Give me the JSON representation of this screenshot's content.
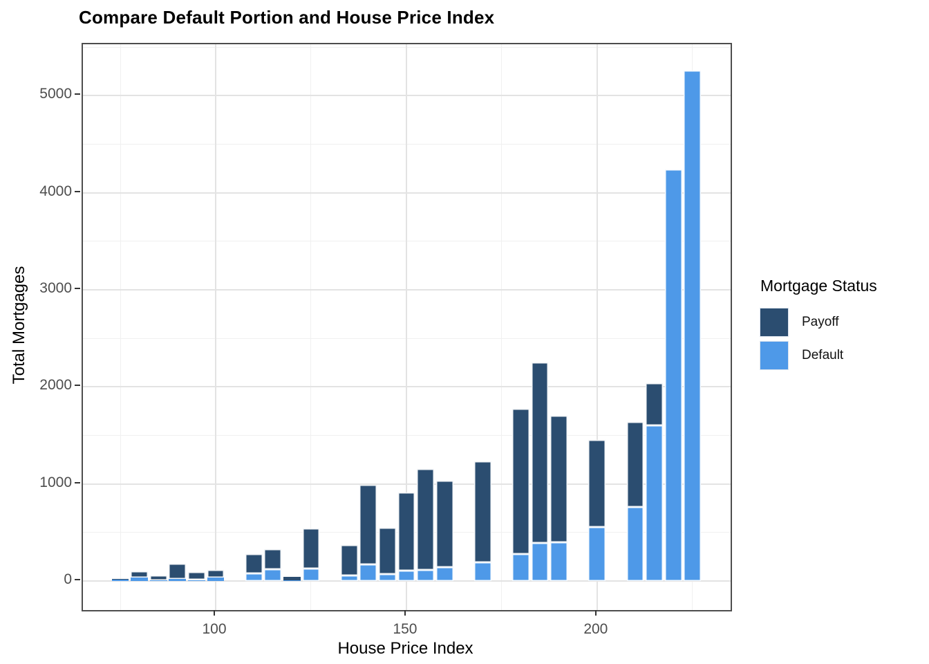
{
  "chart_data": {
    "type": "bar",
    "stacked": true,
    "title": "Compare Default Portion and House Price Index",
    "xlabel": "House Price Index",
    "ylabel": "Total Mortgages",
    "legend_title": "Mortgage Status",
    "legend_position": "right",
    "grid": true,
    "x_range": [
      65.2,
      235
    ],
    "y_range": [
      -300,
      5530
    ],
    "x_ticks": [
      100,
      150,
      200
    ],
    "x_minor_ticks": [
      75,
      125,
      175,
      225
    ],
    "y_ticks": [
      0,
      1000,
      2000,
      3000,
      4000,
      5000
    ],
    "y_minor_ticks": [
      500,
      1500,
      2500,
      3500,
      4500,
      5500
    ],
    "bar_width_units": 4.5,
    "series": [
      {
        "name": "Payoff",
        "color": "#2B4D70"
      },
      {
        "name": "Default",
        "color": "#4E99E8"
      }
    ],
    "bars": [
      {
        "hpi": 75,
        "payoff": 5,
        "default": 15
      },
      {
        "hpi": 80,
        "payoff": 65,
        "default": 35
      },
      {
        "hpi": 85,
        "payoff": 48,
        "default": 5
      },
      {
        "hpi": 90,
        "payoff": 155,
        "default": 20
      },
      {
        "hpi": 95,
        "payoff": 80,
        "default": 10
      },
      {
        "hpi": 100,
        "payoff": 80,
        "default": 35
      },
      {
        "hpi": 110,
        "payoff": 205,
        "default": 75
      },
      {
        "hpi": 115,
        "payoff": 210,
        "default": 120
      },
      {
        "hpi": 120,
        "payoff": 35,
        "default": 8
      },
      {
        "hpi": 125,
        "payoff": 410,
        "default": 130
      },
      {
        "hpi": 135,
        "payoff": 315,
        "default": 55
      },
      {
        "hpi": 140,
        "payoff": 820,
        "default": 170
      },
      {
        "hpi": 145,
        "payoff": 475,
        "default": 70
      },
      {
        "hpi": 150,
        "payoff": 805,
        "default": 105
      },
      {
        "hpi": 155,
        "payoff": 1040,
        "default": 115
      },
      {
        "hpi": 160,
        "payoff": 890,
        "default": 145
      },
      {
        "hpi": 170,
        "payoff": 1040,
        "default": 195
      },
      {
        "hpi": 180,
        "payoff": 1495,
        "default": 280
      },
      {
        "hpi": 185,
        "payoff": 1860,
        "default": 390
      },
      {
        "hpi": 190,
        "payoff": 1300,
        "default": 400
      },
      {
        "hpi": 200,
        "payoff": 900,
        "default": 555
      },
      {
        "hpi": 210,
        "payoff": 875,
        "default": 765
      },
      {
        "hpi": 215,
        "payoff": 430,
        "default": 1605
      },
      {
        "hpi": 220,
        "payoff": 0,
        "default": 4240
      },
      {
        "hpi": 225,
        "payoff": 0,
        "default": 5260
      }
    ]
  }
}
